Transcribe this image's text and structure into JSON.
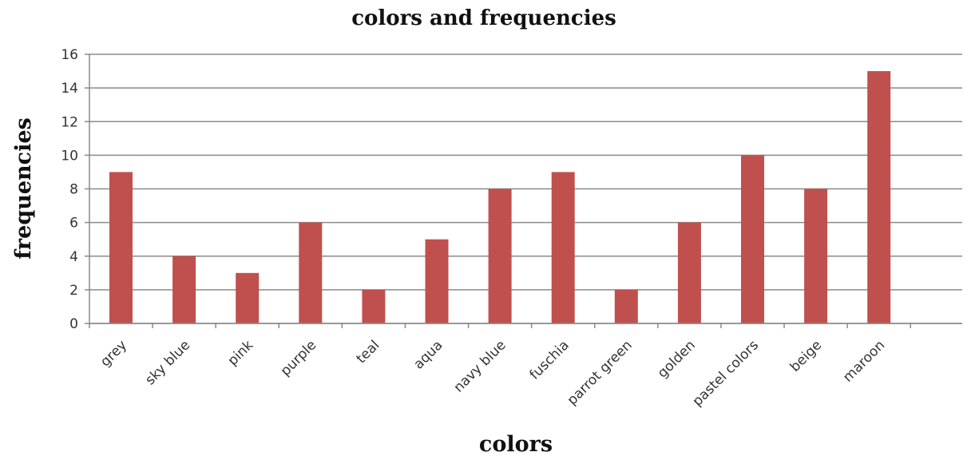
{
  "chart_data": {
    "type": "bar",
    "title": "colors and frequencies",
    "xlabel": "colors",
    "ylabel": "frequencies",
    "categories": [
      "grey",
      "sky blue",
      "pink",
      "purple",
      "teal",
      "aqua",
      "navy blue",
      "fuschia",
      "parrot green",
      "golden",
      "pastel colors",
      "beige",
      "maroon"
    ],
    "values": [
      9,
      4,
      3,
      6,
      2,
      5,
      8,
      9,
      2,
      6,
      10,
      8,
      15
    ],
    "ylim": [
      0,
      16
    ],
    "yticks": [
      0,
      2,
      4,
      6,
      8,
      10,
      12,
      14,
      16
    ],
    "grid": true,
    "legend": "none",
    "bar_color": "#c0504d"
  }
}
